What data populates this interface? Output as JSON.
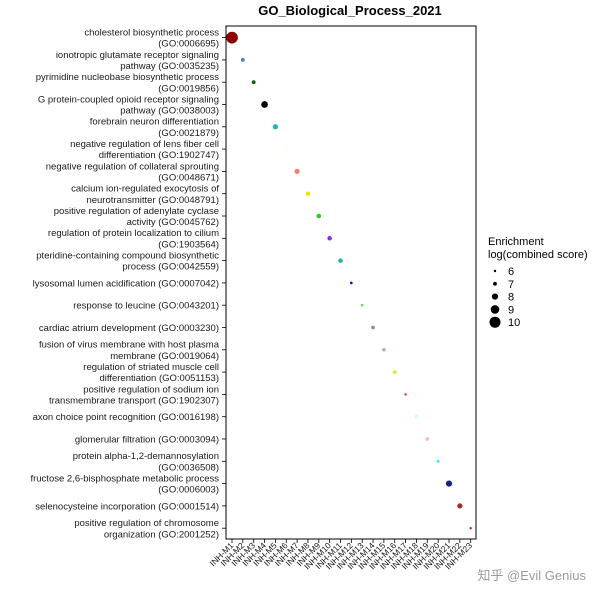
{
  "chart_data": {
    "type": "scatter",
    "title": "GO_Biological_Process_2021",
    "xlabel": "",
    "ylabel": "",
    "categories_x": [
      "INH-M1",
      "INH-M2",
      "INH-M3",
      "INH-M4",
      "INH-M5",
      "INH-M6",
      "INH-M7",
      "INH-M8",
      "INH-M9",
      "INH-M10",
      "INH-M11",
      "INH-M12",
      "INH-M13",
      "INH-M14",
      "INH-M15",
      "INH-M16",
      "INH-M17",
      "INH-M18",
      "INH-M19",
      "INH-M20",
      "INH-M21",
      "INH-M22",
      "INH-M23"
    ],
    "terms": [
      [
        "cholesterol biosynthetic process",
        "(GO:0006695)"
      ],
      [
        "ionotropic glutamate receptor signaling",
        "pathway (GO:0035235)"
      ],
      [
        "pyrimidine nucleobase biosynthetic process",
        "(GO:0019856)"
      ],
      [
        "G protein-coupled opioid receptor signaling",
        "pathway (GO:0038003)"
      ],
      [
        "forebrain neuron differentiation",
        "(GO:0021879)"
      ],
      [
        "negative regulation of lens fiber cell",
        "differentiation (GO:1902747)"
      ],
      [
        "negative regulation of collateral sprouting",
        "(GO:0048671)"
      ],
      [
        "calcium ion-regulated exocytosis of",
        "neurotransmitter (GO:0048791)"
      ],
      [
        "positive regulation of adenylate cyclase",
        "activity (GO:0045762)"
      ],
      [
        "regulation of protein localization to cilium",
        "(GO:1903564)"
      ],
      [
        "pteridine-containing compound biosynthetic",
        "process (GO:0042559)"
      ],
      [
        "lysosomal lumen acidification (GO:0007042)"
      ],
      [
        "response to leucine (GO:0043201)"
      ],
      [
        "cardiac atrium development (GO:0003230)"
      ],
      [
        "fusion of virus membrane with host plasma",
        "membrane (GO:0019064)"
      ],
      [
        "regulation of striated muscle cell",
        "differentiation (GO:0051153)"
      ],
      [
        "positive regulation of sodium ion",
        "transmembrane transport (GO:1902307)"
      ],
      [
        "axon choice point recognition (GO:0016198)"
      ],
      [
        "glomerular filtration (GO:0003094)"
      ],
      [
        "protein alpha-1,2-demannosylation",
        "(GO:0036508)"
      ],
      [
        "fructose 2,6-bisphosphate metabolic process",
        "(GO:0006003)"
      ],
      [
        "selenocysteine incorporation (GO:0001514)"
      ],
      [
        "positive regulation of chromosome",
        "organization (GO:2001252)"
      ]
    ],
    "points": [
      {
        "x": "INH-M1",
        "score": 10.3,
        "color": "#8B0000"
      },
      {
        "x": "INH-M2",
        "score": 7.0,
        "color": "#4A78C8"
      },
      {
        "x": "INH-M3",
        "score": 7.0,
        "color": "#006400"
      },
      {
        "x": "INH-M4",
        "score": 8.2,
        "color": "#000000"
      },
      {
        "x": "INH-M5",
        "score": 7.6,
        "color": "#20B2B8"
      },
      {
        "x": "INH-M6",
        "score": 6.5,
        "color": "#FFFFCC"
      },
      {
        "x": "INH-M7",
        "score": 7.6,
        "color": "#F08070"
      },
      {
        "x": "INH-M8",
        "score": 7.3,
        "color": "#E8E800"
      },
      {
        "x": "INH-M9",
        "score": 7.3,
        "color": "#22CC22"
      },
      {
        "x": "INH-M10",
        "score": 7.3,
        "color": "#8A2BE2"
      },
      {
        "x": "INH-M11",
        "score": 7.3,
        "color": "#20B2B8"
      },
      {
        "x": "INH-M12",
        "score": 6.5,
        "color": "#0000CD"
      },
      {
        "x": "INH-M13",
        "score": 6.5,
        "color": "#66DD66"
      },
      {
        "x": "INH-M14",
        "score": 7.0,
        "color": "#909090"
      },
      {
        "x": "INH-M15",
        "score": 6.9,
        "color": "#C8A898"
      },
      {
        "x": "INH-M16",
        "score": 7.0,
        "color": "#C6F040"
      },
      {
        "x": "INH-M17",
        "score": 6.2,
        "color": "#EE00EE"
      },
      {
        "x": "INH-M18",
        "score": 7.1,
        "color": "#D8FFF0"
      },
      {
        "x": "INH-M19",
        "score": 7.0,
        "color": "#F8B8C8"
      },
      {
        "x": "INH-M20",
        "score": 6.6,
        "color": "#30E8E8"
      },
      {
        "x": "INH-M21",
        "score": 8.0,
        "color": "#1A237E"
      },
      {
        "x": "INH-M22",
        "score": 7.6,
        "color": "#A52A2A"
      },
      {
        "x": "INH-M23",
        "score": 5.3,
        "color": "#D02020"
      }
    ],
    "legend": {
      "title_line1": "Enrichment",
      "title_line2": "log(combined score)",
      "values": [
        6,
        7,
        8,
        9,
        10
      ]
    },
    "grid": false
  },
  "watermark": "知乎 @Evil Genius"
}
